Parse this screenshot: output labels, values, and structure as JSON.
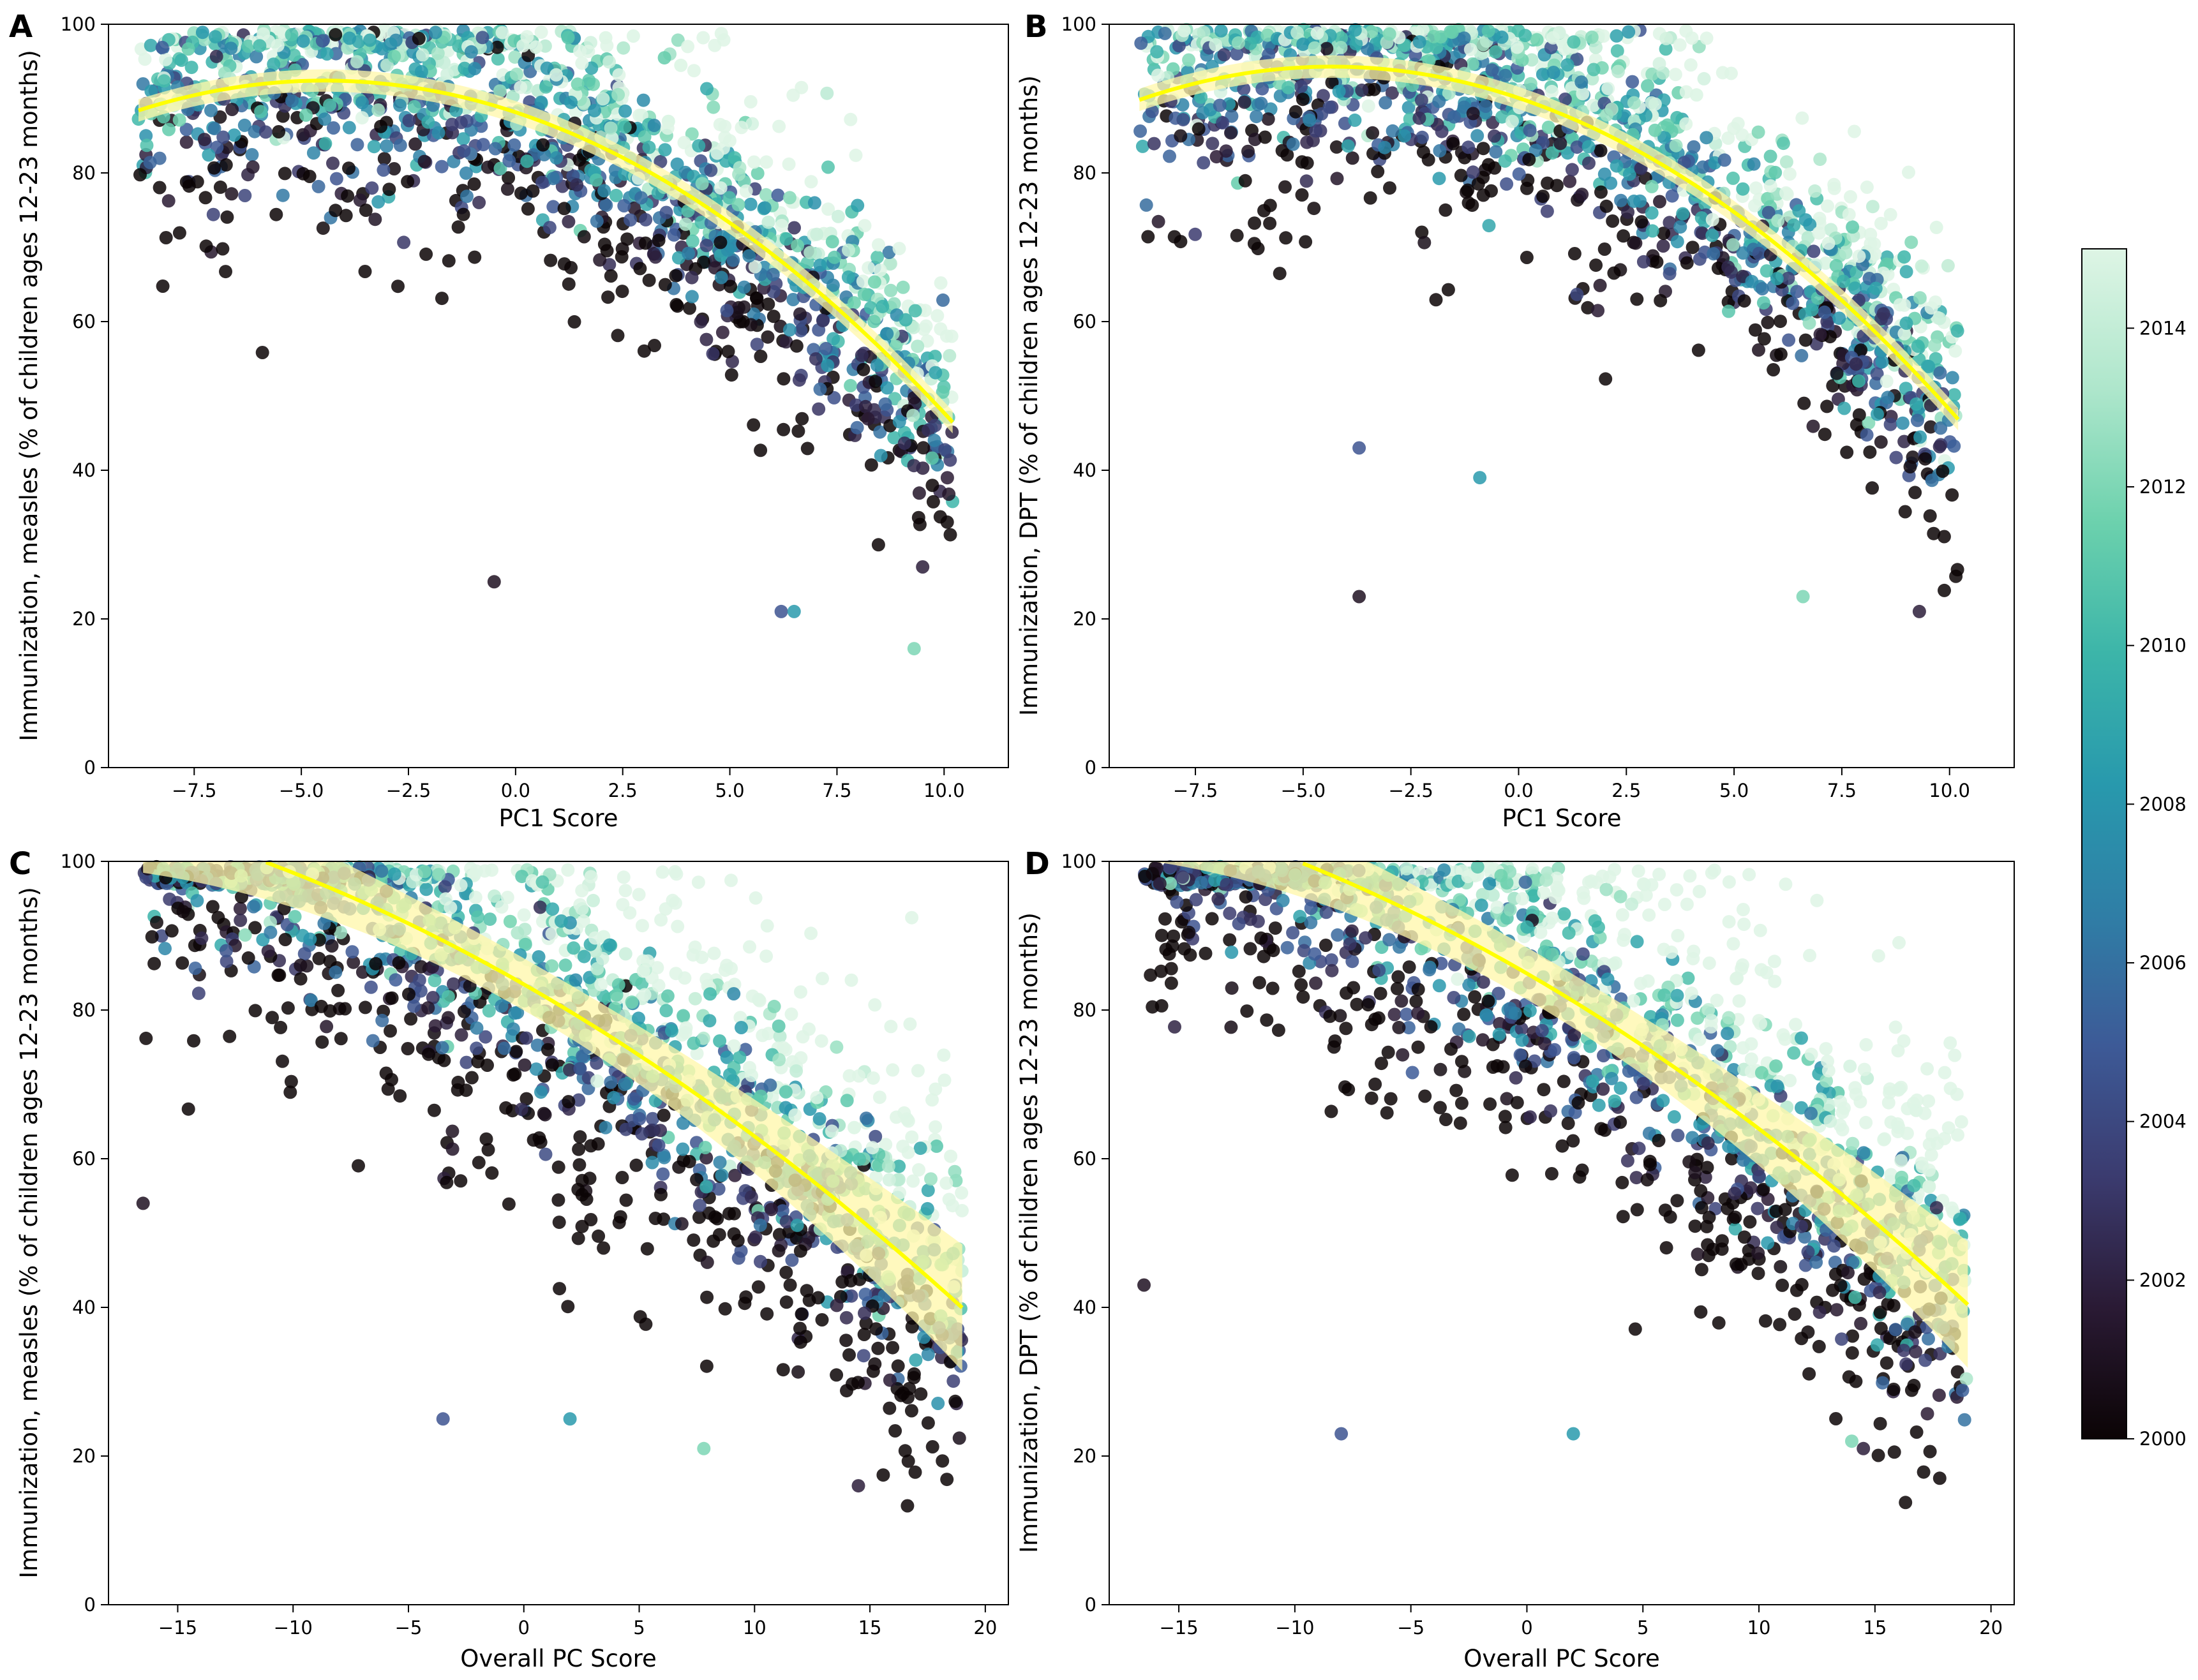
{
  "chart_data": [
    {
      "type": "scatter",
      "panel": "A",
      "xlabel": "PC1 Score",
      "ylabel": "Immunization, measles (% of children ages 12-23 months)",
      "xlim": [
        -9.5,
        11.5
      ],
      "ylim": [
        0,
        100
      ],
      "xticks": [
        -7.5,
        -5.0,
        -2.5,
        0.0,
        2.5,
        5.0,
        7.5,
        10.0
      ],
      "xtick_labels": [
        "−7.5",
        "−5.0",
        "−2.5",
        "0.0",
        "2.5",
        "5.0",
        "7.5",
        "10.0"
      ],
      "yticks": [
        0,
        20,
        40,
        60,
        80,
        100
      ],
      "ytick_labels": [
        "0",
        "20",
        "40",
        "60",
        "80",
        "100"
      ],
      "x_range": [
        -8.8,
        10.2
      ],
      "fit": {
        "type": "quadratic",
        "coef": [
          88.16,
          -1.908,
          -0.2137
        ],
        "ci_half_width": [
          1.5,
          1.5
        ]
      },
      "point_cloud": {
        "count": 1500,
        "spread": 9,
        "outlier_x": [
          -0.5,
          6.2,
          6.5,
          9.3,
          9.5
        ],
        "outlier_y": [
          25,
          21,
          21,
          16,
          27
        ]
      }
    },
    {
      "type": "scatter",
      "panel": "B",
      "xlabel": "PC1 Score",
      "ylabel": "Immunization, DPT (% of children ages 12-23 months)",
      "xlim": [
        -9.5,
        11.5
      ],
      "ylim": [
        0,
        100
      ],
      "xticks": [
        -7.5,
        -5.0,
        -2.5,
        0.0,
        2.5,
        5.0,
        7.5,
        10.0
      ],
      "xtick_labels": [
        "−7.5",
        "−5.0",
        "−2.5",
        "0.0",
        "2.5",
        "5.0",
        "7.5",
        "10.0"
      ],
      "yticks": [
        0,
        20,
        40,
        60,
        80,
        100
      ],
      "ytick_labels": [
        "0",
        "20",
        "40",
        "60",
        "80",
        "100"
      ],
      "x_range": [
        -8.8,
        10.2
      ],
      "fit": {
        "type": "quadratic",
        "coef": [
          90.08,
          -1.947,
          -0.2246
        ],
        "ci_half_width": [
          1.5,
          1.5
        ]
      },
      "point_cloud": {
        "count": 1500,
        "spread": 9,
        "outlier_x": [
          -3.7,
          -3.7,
          -0.9,
          6.6,
          9.3
        ],
        "outlier_y": [
          23,
          43,
          39,
          23,
          21
        ]
      }
    },
    {
      "type": "scatter",
      "panel": "C",
      "xlabel": "Overall PC Score",
      "ylabel": "Immunization, measles (% of children ages 12-23 months)",
      "xlim": [
        -18,
        21
      ],
      "ylim": [
        0,
        100
      ],
      "xticks": [
        -15,
        -10,
        -5,
        0,
        5,
        10,
        15,
        20
      ],
      "xtick_labels": [
        "−15",
        "−10",
        "−5",
        "0",
        "5",
        "10",
        "15",
        "20"
      ],
      "yticks": [
        0,
        20,
        40,
        60,
        80,
        100
      ],
      "ytick_labels": [
        "0",
        "20",
        "40",
        "60",
        "80",
        "100"
      ],
      "x_range": [
        -16.5,
        19
      ],
      "fit": {
        "type": "quadratic",
        "coef": [
          83.46,
          -1.773,
          -0.0272
        ],
        "ci_half_width": [
          3.5,
          8.5
        ]
      },
      "point_cloud": {
        "count": 1600,
        "spread": 12,
        "outlier_x": [
          -16.5,
          -3.5,
          2.0,
          7.8,
          14.5
        ],
        "outlier_y": [
          54,
          25,
          25,
          21,
          16
        ]
      }
    },
    {
      "type": "scatter",
      "panel": "D",
      "xlabel": "Overall PC Score",
      "ylabel": "Immunization, DPT (% of children ages 12-23 months)",
      "xlim": [
        -18,
        21
      ],
      "ylim": [
        0,
        100
      ],
      "xticks": [
        -15,
        -10,
        -5,
        0,
        5,
        10,
        15,
        20
      ],
      "xtick_labels": [
        "−15",
        "−10",
        "−5",
        "0",
        "5",
        "10",
        "15",
        "20"
      ],
      "yticks": [
        0,
        20,
        40,
        60,
        80,
        100
      ],
      "ytick_labels": [
        "0",
        "20",
        "40",
        "60",
        "80",
        "100"
      ],
      "x_range": [
        -16.5,
        19
      ],
      "fit": {
        "type": "quadratic",
        "coef": [
          84.92,
          -1.807,
          -0.0283
        ],
        "ci_half_width": [
          3.5,
          8.5
        ]
      },
      "point_cloud": {
        "count": 1600,
        "spread": 12,
        "outlier_x": [
          -16.5,
          -8.0,
          2.0,
          14.0,
          14.5
        ],
        "outlier_y": [
          43,
          23,
          23,
          22,
          21
        ]
      }
    }
  ],
  "colorbar": {
    "label_values": [
      2000,
      2002,
      2004,
      2006,
      2008,
      2010,
      2012,
      2014
    ],
    "labels": [
      "2000",
      "2002",
      "2004",
      "2006",
      "2008",
      "2010",
      "2012",
      "2014"
    ],
    "range": [
      2000,
      2015
    ],
    "colormap": "mako",
    "stops": [
      "#0b0405",
      "#2a1a34",
      "#3b3b6f",
      "#3d5a97",
      "#2f7ea6",
      "#2899ad",
      "#3cb5a9",
      "#6cd1ad",
      "#ade6cb",
      "#def5e5"
    ]
  },
  "fit_color": "#ffff00",
  "ci_color": "#fff7a8"
}
